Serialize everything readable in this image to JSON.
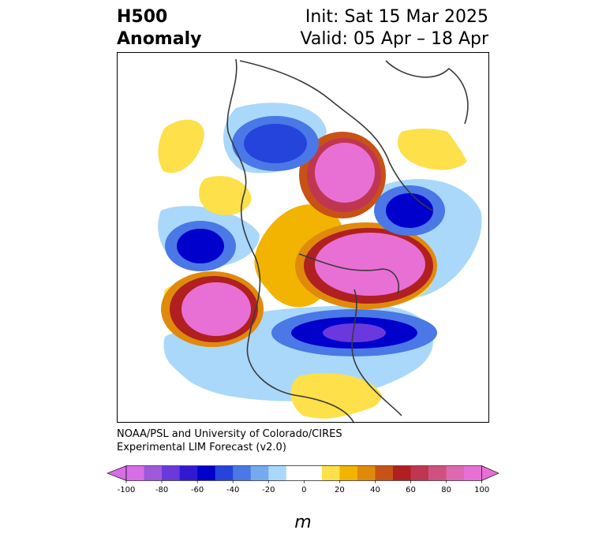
{
  "title": {
    "left_line1": "H500",
    "left_line2": "Anomaly",
    "right_line1": "Init: Sat 15 Mar 2025",
    "right_line2": "Valid: 05 Apr – 18 Apr"
  },
  "credit": {
    "line1": "NOAA/PSL and University of Colorado/CIRES",
    "line2": "Experimental LIM Forecast (v2.0)"
  },
  "colorbar": {
    "unit": "m",
    "ticks": [
      "-100",
      "-80",
      "-60",
      "-40",
      "-20",
      "0",
      "20",
      "40",
      "60",
      "80",
      "100"
    ],
    "colors": [
      "#d86de6",
      "#a058dc",
      "#6a38dc",
      "#3218d2",
      "#0000cc",
      "#2444dc",
      "#4a78e6",
      "#74aaf0",
      "#aad8fa",
      "#ffffff",
      "#ffffff",
      "#fde04a",
      "#f2b400",
      "#e08a0c",
      "#c85216",
      "#b02020",
      "#c03650",
      "#d05080",
      "#e068b0",
      "#e870d4"
    ],
    "extend_low_color": "#d86de6",
    "extend_high_color": "#e870d4"
  },
  "map": {
    "projection": "north-polar-stereographic",
    "anomalies": [
      {
        "name": "positive-ridge-pacific",
        "sign": "+",
        "peak": 100
      },
      {
        "name": "positive-ridge-north-atlantic",
        "sign": "+",
        "peak": 100
      },
      {
        "name": "positive-ridge-central-siberia",
        "sign": "+",
        "peak": 100
      },
      {
        "name": "negative-trough-north-america",
        "sign": "-",
        "peak": -80
      },
      {
        "name": "negative-trough-east-siberia",
        "sign": "-",
        "peak": -60
      },
      {
        "name": "negative-trough-bering-sea",
        "sign": "-",
        "peak": -60
      },
      {
        "name": "negative-trough-europe",
        "sign": "-",
        "peak": -60
      }
    ]
  }
}
